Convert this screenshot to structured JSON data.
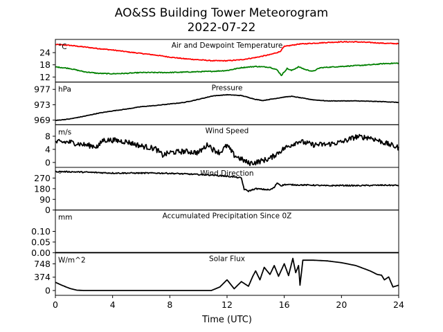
{
  "title_line1": "AO&SS Building Tower Meteorogram",
  "title_line2": "2022-07-22",
  "chart_data": {
    "type": "line",
    "title": "AO&SS Building Tower Meteorogram",
    "subtitle": "2022-07-22",
    "xlabel": "Time (UTC)",
    "xlim": [
      0,
      24
    ],
    "xticks": [
      0,
      4,
      8,
      12,
      16,
      20,
      24
    ],
    "x_tick_labels": [
      "0",
      "4",
      "8",
      "12",
      "16",
      "20",
      "24"
    ],
    "panels": [
      {
        "title": "Air and Dewpoint Temperature",
        "unit": "°C",
        "ylim": [
          9.5,
          30.5
        ],
        "yticks": [
          12,
          18,
          24
        ],
        "y_tick_labels": [
          "12",
          "18",
          "24"
        ],
        "noise": 0.2,
        "series": [
          {
            "color": "#ff0000",
            "x": [
              0,
              1,
              2,
              3,
              4,
              5,
              6,
              7,
              8,
              9,
              10,
              11,
              12,
              13,
              14,
              15,
              15.7,
              16,
              17,
              18,
              19,
              20,
              21,
              22,
              23,
              24
            ],
            "values": [
              28,
              27.6,
              26.8,
              26,
              25.3,
              24.4,
              23.6,
              22.8,
              21.8,
              21,
              20.5,
              20,
              20,
              20.5,
              21.6,
              23,
              24.5,
              27,
              28.2,
              28.6,
              29,
              29.3,
              29.3,
              29,
              28.6,
              28.4
            ]
          },
          {
            "color": "#008000",
            "x": [
              0,
              1,
              2,
              3,
              4,
              5,
              6,
              7,
              8,
              9,
              10,
              11,
              12,
              13,
              14,
              15,
              15.5,
              15.8,
              16.2,
              16.5,
              17,
              17.5,
              18,
              18.5,
              19,
              20,
              21,
              22,
              23,
              24
            ],
            "values": [
              17,
              16.2,
              14.6,
              13.8,
              13.6,
              13.8,
              14.2,
              14.2,
              14.2,
              14.4,
              14.6,
              14.8,
              15.2,
              16.6,
              17.2,
              16.8,
              15.5,
              12.8,
              16.2,
              15.2,
              17,
              15.6,
              14.8,
              16.5,
              16.8,
              17.2,
              17.6,
              18,
              18.6,
              18.8
            ]
          }
        ]
      },
      {
        "title": "Pressure",
        "unit": "hPa",
        "ylim": [
          967.8,
          978.9
        ],
        "yticks": [
          969,
          973,
          977
        ],
        "y_tick_labels": [
          "969",
          "973",
          "977"
        ],
        "noise": 0.06,
        "series": [
          {
            "color": "#000000",
            "x": [
              0,
              1,
              2,
              3,
              4,
              5,
              6,
              7,
              8,
              9,
              10,
              11,
              12,
              13,
              14,
              14.5,
              15,
              16,
              16.5,
              17,
              18,
              19,
              20,
              21,
              22,
              23,
              24
            ],
            "values": [
              968.9,
              969.3,
              970,
              970.8,
              971.4,
              971.9,
              972.5,
              972.8,
              973.2,
              973.6,
              974.4,
              975.3,
              975.6,
              975.4,
              974.4,
              974.1,
              974.4,
              975,
              975.2,
              974.9,
              974.3,
              974,
              974,
              974,
              973.9,
              973.8,
              973.6
            ]
          }
        ]
      },
      {
        "title": "Wind Speed",
        "unit": "m/s",
        "ylim": [
          -1.5,
          11.5
        ],
        "yticks": [
          0,
          4,
          8
        ],
        "y_tick_labels": [
          "0",
          "4",
          "8"
        ],
        "noise": 0.8,
        "series": [
          {
            "color": "#000000",
            "x": [
              0,
              1,
              2,
              3,
              3.3,
              4,
              5,
              6,
              7,
              7.5,
              8,
              9,
              10,
              10.7,
              11,
              11.5,
              12,
              12.5,
              13,
              13.5,
              14,
              15,
              16,
              17,
              18,
              19,
              20,
              21,
              22,
              23,
              24
            ],
            "values": [
              6.2,
              6.2,
              5.4,
              4.8,
              6.8,
              6.8,
              6.3,
              5,
              4.2,
              2.2,
              3,
              3.4,
              3,
              5.6,
              4,
              3,
              5.2,
              2.2,
              1,
              -0.2,
              0,
              1.2,
              4.3,
              6.5,
              5.4,
              5.5,
              6.2,
              7.8,
              7.6,
              6,
              4.5
            ]
          }
        ]
      },
      {
        "title": "Wind Direction",
        "unit": "°",
        "ylim": [
          0,
          360
        ],
        "yticks": [
          0,
          90,
          180,
          270
        ],
        "y_tick_labels": [
          "0",
          "90",
          "180",
          "270"
        ],
        "noise": 5,
        "series": [
          {
            "color": "#000000",
            "x": [
              0,
              1,
              2,
              4,
              6,
              7,
              8,
              9,
              10,
              11,
              12,
              12.5,
              13,
              13.2,
              13.5,
              14,
              15,
              15.3,
              15.5,
              15.8,
              16,
              17,
              18,
              19,
              20,
              21,
              22,
              23,
              24
            ],
            "values": [
              325,
              323,
              320,
              312,
              312,
              312,
              310,
              305,
              300,
              295,
              285,
              280,
              270,
              175,
              160,
              180,
              170,
              190,
              230,
              205,
              215,
              212,
              210,
              205,
              208,
              206,
              208,
              210,
              208
            ]
          }
        ]
      },
      {
        "title": "Accumulated Precipitation Since 0Z",
        "unit": "mm",
        "ylim": [
          0,
          0.2
        ],
        "yticks": [
          0,
          0.05,
          0.1
        ],
        "y_tick_labels": [
          "0.00",
          "0.05",
          "0.10"
        ],
        "noise": 0,
        "series": [
          {
            "color": "#000000",
            "x": [
              0,
              24
            ],
            "values": [
              0,
              0
            ]
          }
        ]
      },
      {
        "title": "Solar Flux",
        "unit": "W/m^2",
        "ylim": [
          -135,
          1060
        ],
        "yticks": [
          0,
          374,
          748
        ],
        "y_tick_labels": [
          "0",
          "374",
          "748"
        ],
        "noise": 0,
        "series": [
          {
            "color": "#000000",
            "x": [
              0,
              0.5,
              1,
              1.5,
              2,
              3,
              4,
              6,
              8,
              10,
              10.9,
              11.5,
              12,
              12.5,
              13,
              13.5,
              13.8,
              14,
              14.3,
              14.6,
              15,
              15.3,
              15.6,
              16,
              16.3,
              16.6,
              16.8,
              17,
              17.1,
              17.3,
              17.5,
              18,
              19,
              20,
              21,
              22,
              22.5,
              22.8,
              23,
              23.3,
              23.6,
              24
            ],
            "values": [
              230,
              140,
              60,
              10,
              0,
              0,
              0,
              0,
              0,
              0,
              0,
              100,
              300,
              50,
              250,
              120,
              400,
              550,
              300,
              650,
              450,
              700,
              400,
              750,
              420,
              900,
              500,
              700,
              150,
              850,
              850,
              850,
              830,
              780,
              700,
              550,
              450,
              430,
              300,
              380,
              100,
              150
            ]
          }
        ]
      }
    ]
  }
}
